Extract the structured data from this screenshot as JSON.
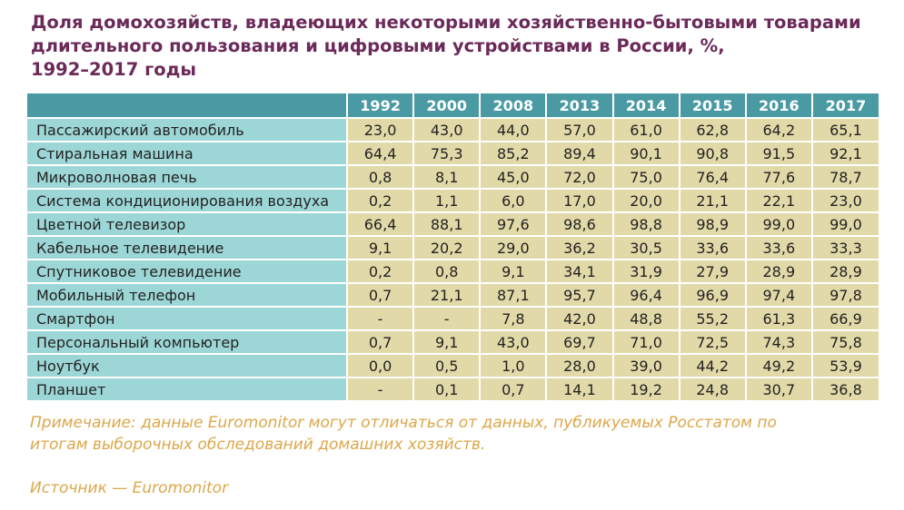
{
  "title": {
    "line1": "Доля домохозяйств, владеющих некоторыми хозяйственно-бытовыми товарами",
    "line2": "длительного пользования и цифровыми устройствами в России, %,",
    "line3": "1992–2017 годы"
  },
  "table": {
    "years": [
      "1992",
      "2000",
      "2008",
      "2013",
      "2014",
      "2015",
      "2016",
      "2017"
    ],
    "rows": [
      {
        "name": "Пассажирский автомобиль",
        "values": [
          "23,0",
          "43,0",
          "44,0",
          "57,0",
          "61,0",
          "62,8",
          "64,2",
          "65,1"
        ]
      },
      {
        "name": "Стиральная машина",
        "values": [
          "64,4",
          "75,3",
          "85,2",
          "89,4",
          "90,1",
          "90,8",
          "91,5",
          "92,1"
        ]
      },
      {
        "name": "Микроволновая печь",
        "values": [
          "0,8",
          "8,1",
          "45,0",
          "72,0",
          "75,0",
          "76,4",
          "77,6",
          "78,7"
        ]
      },
      {
        "name": "Система кондиционирования воздуха",
        "values": [
          "0,2",
          "1,1",
          "6,0",
          "17,0",
          "20,0",
          "21,1",
          "22,1",
          "23,0"
        ]
      },
      {
        "name": "Цветной телевизор",
        "values": [
          "66,4",
          "88,1",
          "97,6",
          "98,6",
          "98,8",
          "98,9",
          "99,0",
          "99,0"
        ]
      },
      {
        "name": "Кабельное телевидение",
        "values": [
          "9,1",
          "20,2",
          "29,0",
          "36,2",
          "30,5",
          "33,6",
          "33,6",
          "33,3"
        ]
      },
      {
        "name": "Спутниковое телевидение",
        "values": [
          "0,2",
          "0,8",
          "9,1",
          "34,1",
          "31,9",
          "27,9",
          "28,9",
          "28,9"
        ]
      },
      {
        "name": "Мобильный телефон",
        "values": [
          "0,7",
          "21,1",
          "87,1",
          "95,7",
          "96,4",
          "96,9",
          "97,4",
          "97,8"
        ]
      },
      {
        "name": "Смартфон",
        "values": [
          "-",
          "-",
          "7,8",
          "42,0",
          "48,8",
          "55,2",
          "61,3",
          "66,9"
        ]
      },
      {
        "name": "Персональный компьютер",
        "values": [
          "0,7",
          "9,1",
          "43,0",
          "69,7",
          "71,0",
          "72,5",
          "74,3",
          "75,8"
        ]
      },
      {
        "name": "Ноутбук",
        "values": [
          "0,0",
          "0,5",
          "1,0",
          "28,0",
          "39,0",
          "44,2",
          "49,2",
          "53,9"
        ]
      },
      {
        "name": "Планшет",
        "values": [
          "-",
          "0,1",
          "0,7",
          "14,1",
          "19,2",
          "24,8",
          "30,7",
          "36,8"
        ]
      }
    ]
  },
  "note": {
    "line1": "Примечание: данные Euromonitor могут отличаться от данных, публикуемых Росстатом по",
    "line2": "итогам выборочных обследований домашних хозяйств."
  },
  "source": "Источник — Euromonitor",
  "colors": {
    "title": "#6b2a5a",
    "header_bg": "#4a9aa3",
    "name_cell_bg": "#9dd6d6",
    "value_cell_bg": "#e2d9a8",
    "note_text": "#dca74a"
  }
}
